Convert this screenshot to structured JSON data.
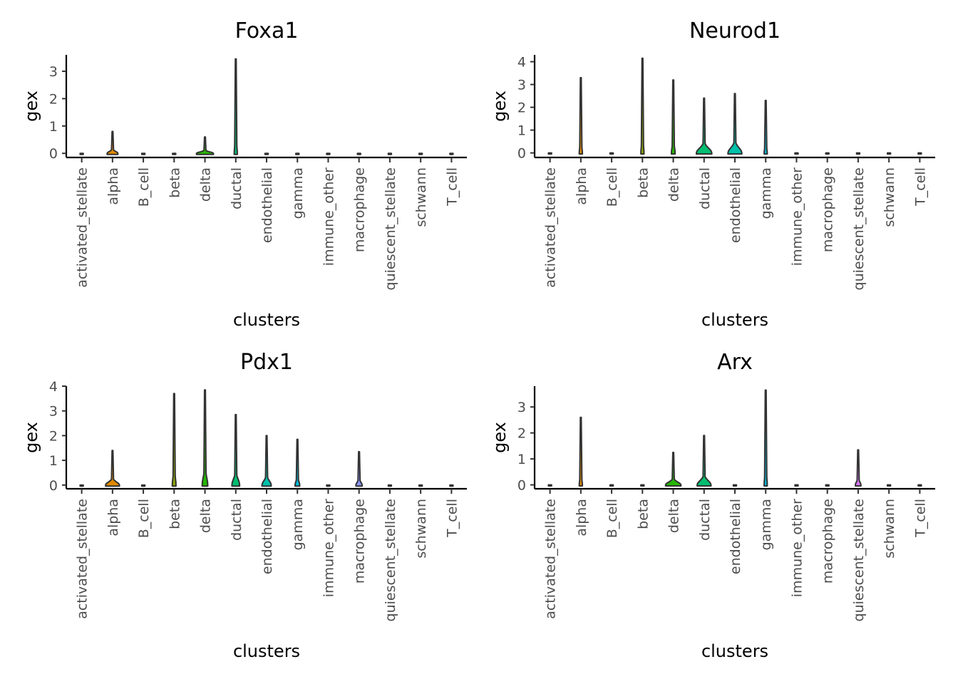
{
  "figure": {
    "colors": {
      "activated_stellate": "#F8766D",
      "alpha": "#E18A00",
      "B_cell": "#BE9C00",
      "beta": "#8CAB00",
      "delta": "#24B700",
      "ductal": "#00BE70",
      "endothelial": "#00C1AB",
      "gamma": "#00BBDA",
      "immune_other": "#00ACFC",
      "macrophage": "#8B93FF",
      "quiescent_stellate": "#D575FE",
      "schwann": "#F962DD",
      "T_cell": "#FF65AC"
    }
  },
  "chart_data": [
    {
      "type": "violin",
      "title": "Foxa1",
      "xlabel": "clusters",
      "ylabel": "gex",
      "categories": [
        "activated_stellate",
        "alpha",
        "B_cell",
        "beta",
        "delta",
        "ductal",
        "endothelial",
        "gamma",
        "immune_other",
        "macrophage",
        "quiescent_stellate",
        "schwann",
        "T_cell"
      ],
      "max": [
        0,
        0.8,
        0,
        0,
        0.6,
        3.45,
        0,
        0,
        0,
        0,
        0,
        0,
        0
      ],
      "peak_width": [
        0.04,
        0.35,
        0.04,
        0.04,
        0.55,
        0.05,
        0.04,
        0.04,
        0.04,
        0.04,
        0.04,
        0.04,
        0.04
      ],
      "ylim": [
        -0.15,
        3.6
      ],
      "yticks": [
        0,
        1,
        2,
        3
      ],
      "grid": false,
      "legend": "none"
    },
    {
      "type": "violin",
      "title": "Neurod1",
      "xlabel": "clusters",
      "ylabel": "gex",
      "categories": [
        "activated_stellate",
        "alpha",
        "B_cell",
        "beta",
        "delta",
        "ductal",
        "endothelial",
        "gamma",
        "immune_other",
        "macrophage",
        "quiescent_stellate",
        "schwann",
        "T_cell"
      ],
      "max": [
        0,
        3.3,
        0,
        4.15,
        3.2,
        2.4,
        2.6,
        2.3,
        0,
        0,
        0,
        0,
        0
      ],
      "peak_width": [
        0.04,
        0.08,
        0.04,
        0.08,
        0.12,
        0.5,
        0.45,
        0.1,
        0.04,
        0.04,
        0.04,
        0.04,
        0.04
      ],
      "ylim": [
        -0.2,
        4.3
      ],
      "yticks": [
        0,
        1,
        2,
        3,
        4
      ],
      "grid": false,
      "legend": "none"
    },
    {
      "type": "violin",
      "title": "Pdx1",
      "xlabel": "clusters",
      "ylabel": "gex",
      "categories": [
        "activated_stellate",
        "alpha",
        "B_cell",
        "beta",
        "delta",
        "ductal",
        "endothelial",
        "gamma",
        "immune_other",
        "macrophage",
        "quiescent_stellate",
        "schwann",
        "T_cell"
      ],
      "max": [
        0,
        1.4,
        0,
        3.7,
        3.85,
        2.85,
        2.0,
        1.85,
        0,
        1.35,
        0,
        0,
        0
      ],
      "peak_width": [
        0.04,
        0.45,
        0.04,
        0.12,
        0.18,
        0.25,
        0.3,
        0.15,
        0.04,
        0.2,
        0.04,
        0.04,
        0.04
      ],
      "ylim": [
        -0.15,
        4.0
      ],
      "yticks": [
        0,
        1,
        2,
        3,
        4
      ],
      "grid": false,
      "legend": "none"
    },
    {
      "type": "violin",
      "title": "Arx",
      "xlabel": "clusters",
      "ylabel": "gex",
      "categories": [
        "activated_stellate",
        "alpha",
        "B_cell",
        "beta",
        "delta",
        "ductal",
        "endothelial",
        "gamma",
        "immune_other",
        "macrophage",
        "quiescent_stellate",
        "schwann",
        "T_cell"
      ],
      "max": [
        0,
        2.6,
        0,
        0,
        1.25,
        1.9,
        0,
        3.65,
        0,
        0,
        1.35,
        0,
        0
      ],
      "peak_width": [
        0.04,
        0.08,
        0.04,
        0.04,
        0.5,
        0.45,
        0.04,
        0.06,
        0.04,
        0.04,
        0.18,
        0.04,
        0.04
      ],
      "ylim": [
        -0.15,
        3.8
      ],
      "yticks": [
        0,
        1,
        2,
        3
      ],
      "grid": false,
      "legend": "none"
    }
  ]
}
